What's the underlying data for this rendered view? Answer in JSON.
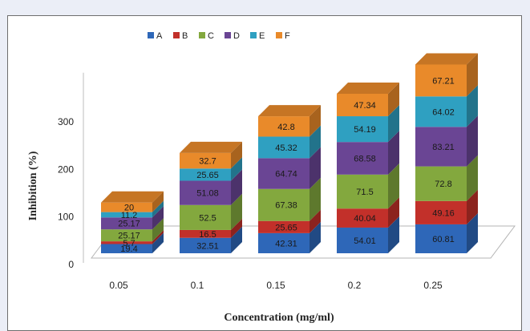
{
  "chart_data": {
    "type": "bar",
    "stacked": true,
    "three_d": true,
    "title": "",
    "xlabel": "Concentration (mg/ml)",
    "ylabel": "Inhibition (%)",
    "categories": [
      "0.05",
      "0.1",
      "0.15",
      "0.2",
      "0.25"
    ],
    "y_ticks": [
      "0",
      "100",
      "200",
      "300"
    ],
    "ylim": [
      0,
      400
    ],
    "legend_position": "top",
    "series": [
      {
        "name": "A",
        "color": "#2e67b8",
        "values": [
          19.4,
          32.51,
          42.31,
          54.01,
          60.81
        ],
        "labels": [
          "19.4",
          "32.51",
          "42.31",
          "54.01",
          "60.81"
        ]
      },
      {
        "name": "B",
        "color": "#c2302a",
        "values": [
          5.7,
          16.5,
          25.65,
          40.04,
          49.16
        ],
        "labels": [
          "5.7",
          "16.5",
          "25.65",
          "40.04",
          "49.16"
        ]
      },
      {
        "name": "C",
        "color": "#83a83e",
        "values": [
          25.17,
          52.5,
          67.38,
          71.5,
          72.8
        ],
        "labels": [
          "25.17",
          "52.5",
          "67.38",
          "71.5",
          "72.8"
        ]
      },
      {
        "name": "D",
        "color": "#6a4594",
        "values": [
          25.17,
          51.08,
          64.74,
          68.58,
          83.21
        ],
        "labels": [
          "25.17",
          "51.08",
          "64.74",
          "68.58",
          "83.21"
        ]
      },
      {
        "name": "E",
        "color": "#2fa0c1",
        "values": [
          11.2,
          25.65,
          45.32,
          54.19,
          64.02
        ],
        "labels": [
          "11.2",
          "25.65",
          "45.32",
          "54.19",
          "64.02"
        ]
      },
      {
        "name": "F",
        "color": "#e98a2a",
        "values": [
          20,
          32.7,
          42.8,
          47.34,
          67.21
        ],
        "labels": [
          "20",
          "32.7",
          "42.8",
          "47.34",
          "67.21"
        ]
      }
    ]
  }
}
